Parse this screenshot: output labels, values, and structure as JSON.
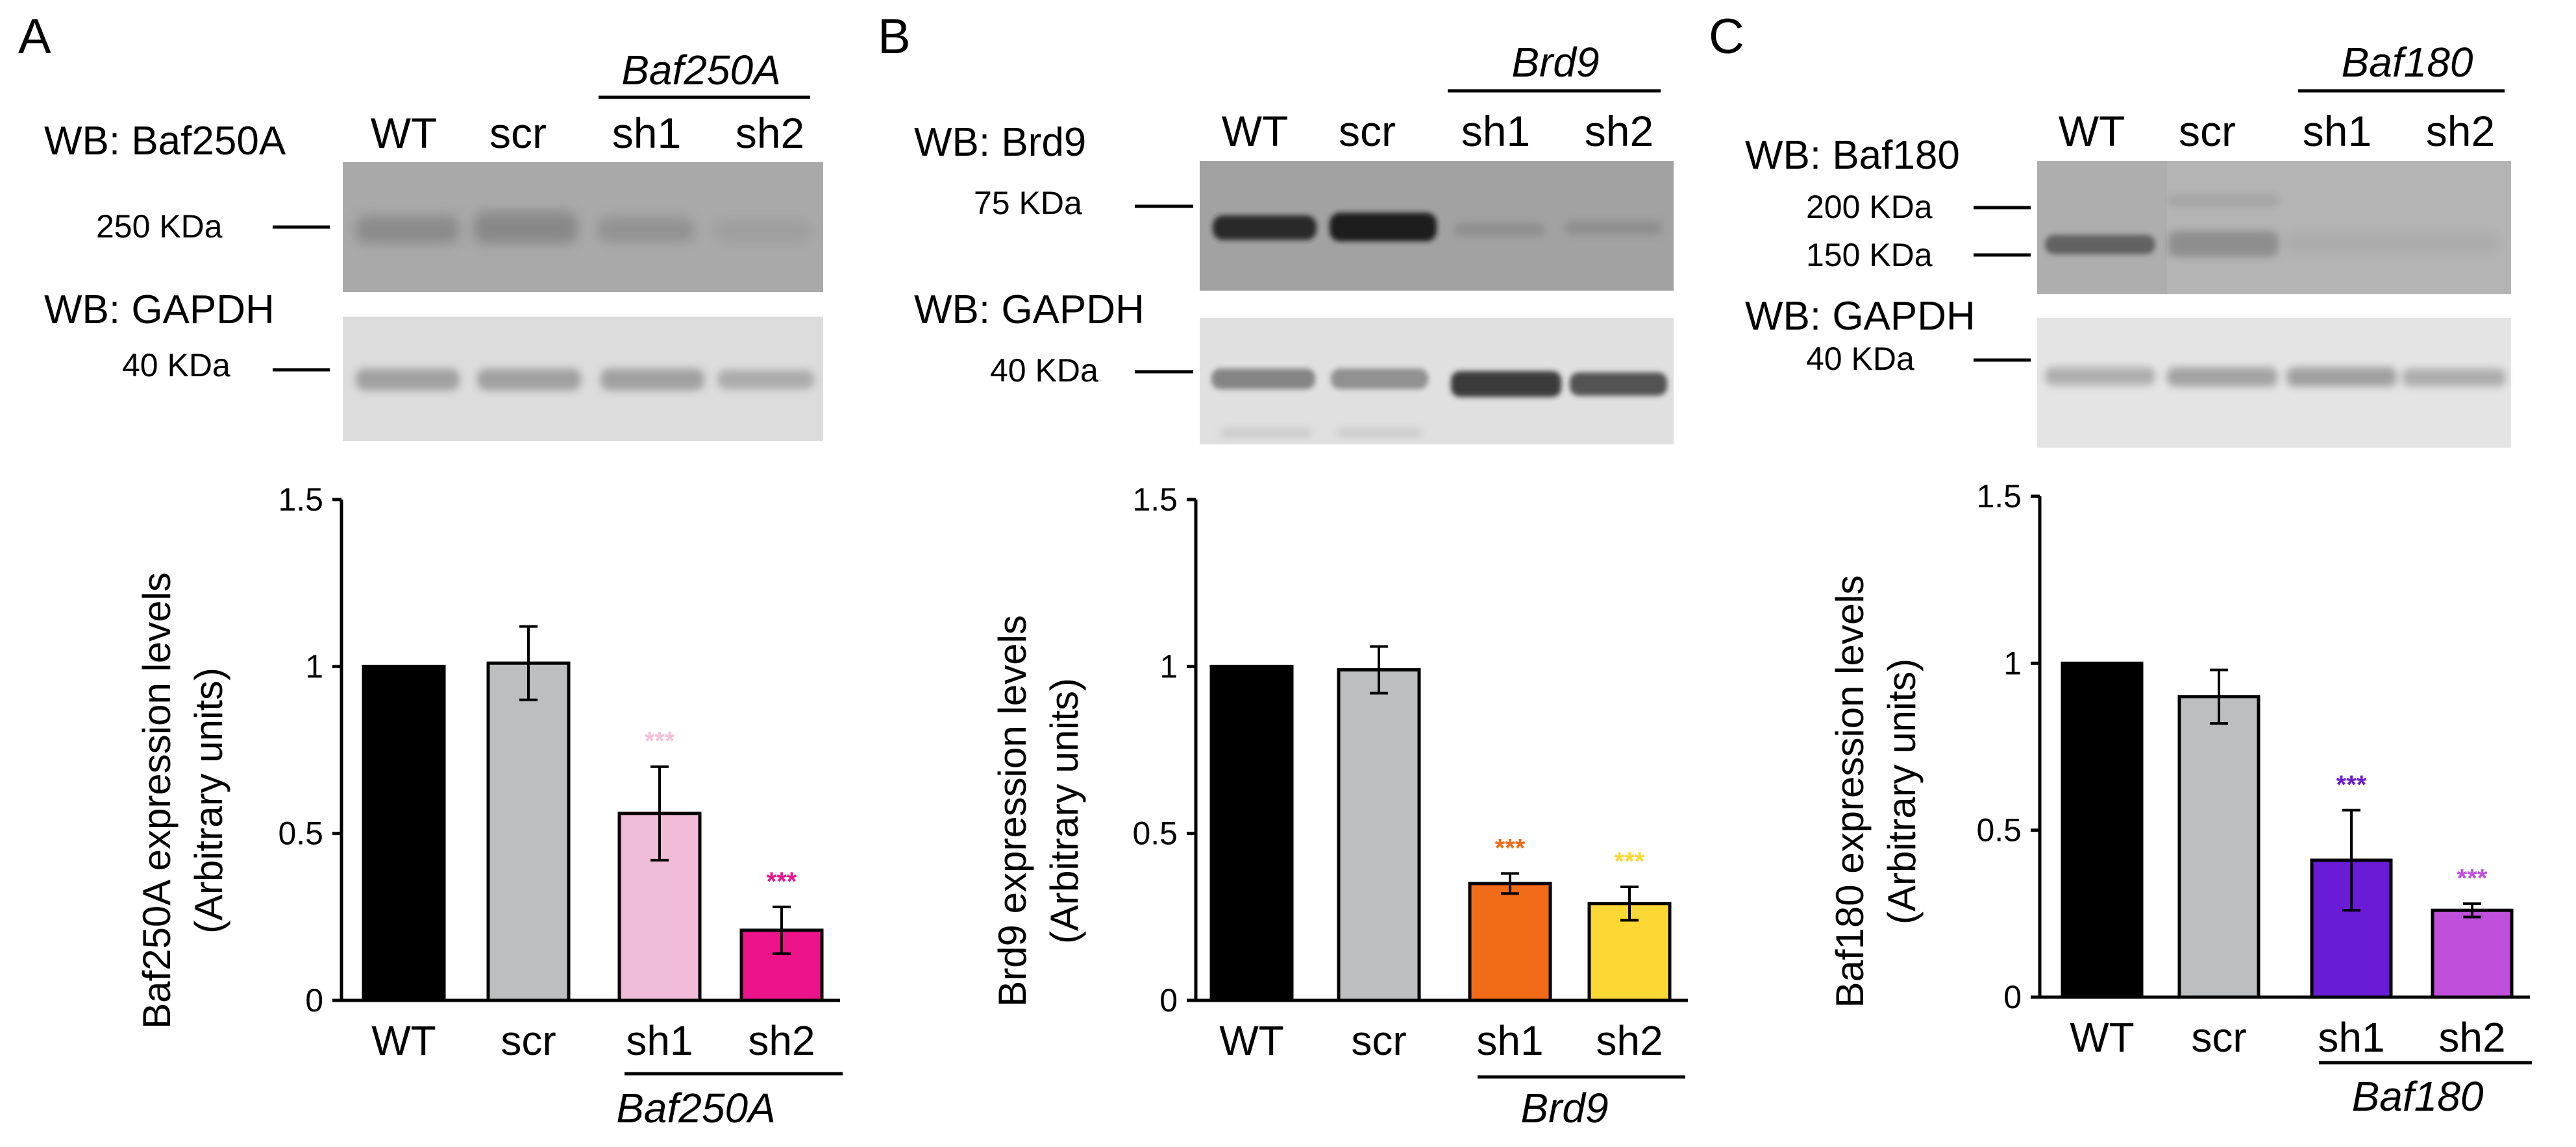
{
  "panels": [
    {
      "letter": "A",
      "gene": "Baf250A",
      "lanes": [
        "WT",
        "scr",
        "sh1",
        "sh2"
      ],
      "wb_target": "WB: Baf250A",
      "wb_target_markers": [
        "250 KDa"
      ],
      "wb_loading": "WB: GAPDH",
      "wb_loading_markers": [
        "40 KDa"
      ],
      "colors": [
        "#000000",
        "#bcbec0",
        "#f1bcd8",
        "#ec138b"
      ],
      "star_colors": [
        "#f5bfd8",
        "#ec138b"
      ]
    },
    {
      "letter": "B",
      "gene": "Brd9",
      "lanes": [
        "WT",
        "scr",
        "sh1",
        "sh2"
      ],
      "wb_target": "WB: Brd9",
      "wb_target_markers": [
        "75 KDa"
      ],
      "wb_loading": "WB: GAPDH",
      "wb_loading_markers": [
        "40 KDa"
      ],
      "colors": [
        "#000000",
        "#bcbec0",
        "#f26b18",
        "#fdd835"
      ],
      "star_colors": [
        "#f26b18",
        "#fdd835"
      ]
    },
    {
      "letter": "C",
      "gene": "Baf180",
      "lanes": [
        "WT",
        "scr",
        "sh1",
        "sh2"
      ],
      "wb_target": "WB: Baf180",
      "wb_target_markers": [
        "200 KDa",
        "150 KDa"
      ],
      "wb_loading": "WB: GAPDH",
      "wb_loading_markers": [
        "40 KDa"
      ],
      "colors": [
        "#000000",
        "#bcbec0",
        "#6a1bd6",
        "#c050dc"
      ],
      "star_colors": [
        "#6a1bd6",
        "#c050dc"
      ]
    }
  ],
  "chart_data": [
    {
      "type": "bar",
      "categories": [
        "WT",
        "scr",
        "sh1",
        "sh2"
      ],
      "group_label": "Baf250A",
      "values": [
        1.0,
        1.01,
        0.56,
        0.21
      ],
      "errors": [
        0,
        0.11,
        0.14,
        0.07
      ],
      "significance": [
        "",
        "",
        "***",
        "***"
      ],
      "ylabel": [
        "Baf250A expression levels",
        "(Arbitrary units)"
      ],
      "ylim": [
        0,
        1.5
      ],
      "yticks": [
        "0",
        "0.5",
        "1",
        "1.5"
      ],
      "grid": false
    },
    {
      "type": "bar",
      "categories": [
        "WT",
        "scr",
        "sh1",
        "sh2"
      ],
      "group_label": "Brd9",
      "values": [
        1.0,
        0.99,
        0.35,
        0.29
      ],
      "errors": [
        0,
        0.07,
        0.03,
        0.05
      ],
      "significance": [
        "",
        "",
        "***",
        "***"
      ],
      "ylabel": [
        "Brd9 expression levels",
        "(Arbitrary units)"
      ],
      "ylim": [
        0,
        1.5
      ],
      "yticks": [
        "0",
        "0.5",
        "1",
        "1.5"
      ],
      "grid": false
    },
    {
      "type": "bar",
      "categories": [
        "WT",
        "scr",
        "sh1",
        "sh2"
      ],
      "group_label": "Baf180",
      "values": [
        1.0,
        0.9,
        0.41,
        0.26
      ],
      "errors": [
        0,
        0.08,
        0.15,
        0.02
      ],
      "significance": [
        "",
        "",
        "***",
        "***"
      ],
      "ylabel": [
        "Baf180 expression levels",
        "(Arbitrary units)"
      ],
      "ylim": [
        0,
        1.5
      ],
      "yticks": [
        "0",
        "0.5",
        "1",
        "1.5"
      ],
      "grid": false
    }
  ]
}
